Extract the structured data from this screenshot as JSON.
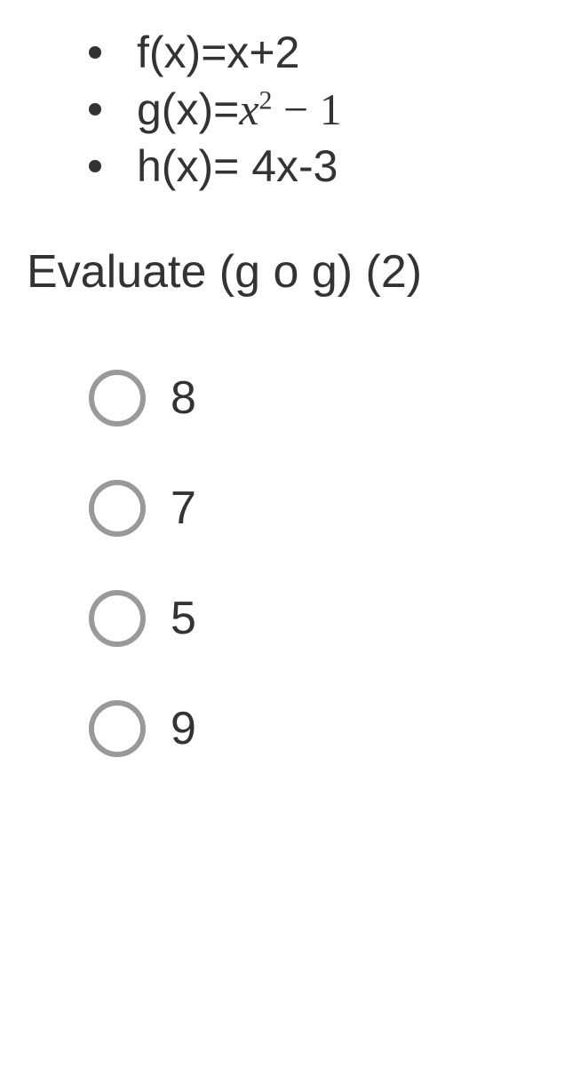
{
  "definitions": {
    "item1": {
      "prefix": "f(x)=x+2"
    },
    "item2": {
      "prefix": "g(x)=",
      "base": "x",
      "exp": "2",
      "tail": " − 1"
    },
    "item3": {
      "prefix": "h(x)= 4x-3"
    }
  },
  "question": "Evaluate (g o g) (2)",
  "options": [
    {
      "label": "8"
    },
    {
      "label": "7"
    },
    {
      "label": "5"
    },
    {
      "label": "9"
    }
  ],
  "colors": {
    "text": "#333333",
    "radio_border": "#999999",
    "background": "#ffffff"
  },
  "fonts": {
    "body": "Arial",
    "math": "Times New Roman"
  }
}
